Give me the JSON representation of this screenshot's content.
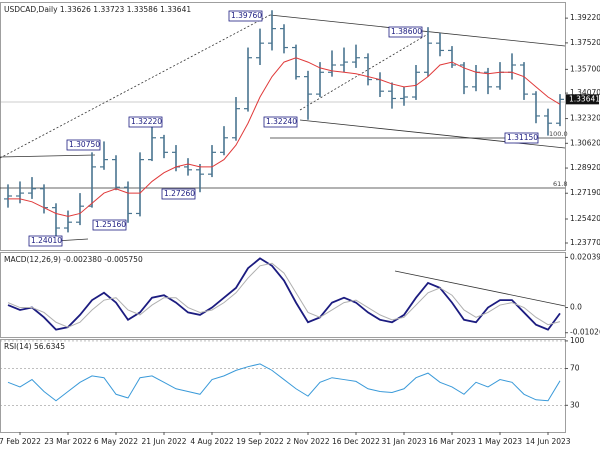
{
  "chart_data": [
    {
      "type": "ohlc",
      "title": "USDCAD,Daily 1.33626 1.33723 1.33586 1.33641",
      "color": "#4a7590",
      "open": [
        1.268,
        1.27,
        1.272,
        1.275,
        1.262,
        1.248,
        1.252,
        1.263,
        1.29,
        1.295,
        1.276,
        1.258,
        1.295,
        1.31,
        1.3,
        1.29,
        1.288,
        1.285,
        1.3,
        1.31,
        1.33,
        1.365,
        1.375,
        1.385,
        1.372,
        1.352,
        1.34,
        1.355,
        1.36,
        1.362,
        1.365,
        1.35,
        1.342,
        1.337,
        1.338,
        1.355,
        1.375,
        1.37,
        1.36,
        1.345,
        1.355,
        1.345,
        1.355,
        1.36,
        1.34,
        1.325,
        1.32
      ],
      "high": [
        1.278,
        1.28,
        1.283,
        1.278,
        1.265,
        1.26,
        1.272,
        1.3,
        1.3075,
        1.298,
        1.28,
        1.3,
        1.3222,
        1.312,
        1.305,
        1.296,
        1.292,
        1.305,
        1.318,
        1.338,
        1.372,
        1.385,
        1.3976,
        1.388,
        1.374,
        1.356,
        1.362,
        1.37,
        1.372,
        1.374,
        1.368,
        1.355,
        1.348,
        1.345,
        1.36,
        1.386,
        1.382,
        1.373,
        1.362,
        1.36,
        1.358,
        1.362,
        1.368,
        1.362,
        1.342,
        1.33,
        1.34
      ],
      "low": [
        1.262,
        1.265,
        1.268,
        1.258,
        1.2401,
        1.245,
        1.25,
        1.262,
        1.288,
        1.274,
        1.2516,
        1.256,
        1.294,
        1.296,
        1.287,
        1.284,
        1.2726,
        1.283,
        1.298,
        1.308,
        1.328,
        1.36,
        1.37,
        1.368,
        1.35,
        1.3224,
        1.338,
        1.352,
        1.355,
        1.358,
        1.346,
        1.338,
        1.33,
        1.332,
        1.336,
        1.352,
        1.366,
        1.358,
        1.34,
        1.342,
        1.34,
        1.343,
        1.35,
        1.336,
        1.32,
        1.3115,
        1.318
      ],
      "close": [
        1.27,
        1.272,
        1.275,
        1.262,
        1.248,
        1.252,
        1.263,
        1.29,
        1.295,
        1.276,
        1.258,
        1.295,
        1.31,
        1.3,
        1.29,
        1.288,
        1.285,
        1.3,
        1.31,
        1.33,
        1.365,
        1.375,
        1.385,
        1.372,
        1.352,
        1.34,
        1.355,
        1.36,
        1.362,
        1.365,
        1.35,
        1.342,
        1.337,
        1.338,
        1.355,
        1.375,
        1.37,
        1.36,
        1.345,
        1.355,
        1.345,
        1.355,
        1.36,
        1.34,
        1.325,
        1.32,
        1.33641
      ],
      "series": [
        {
          "color": "#e03a3a",
          "values": [
            1.268,
            1.268,
            1.266,
            1.262,
            1.258,
            1.256,
            1.258,
            1.265,
            1.272,
            1.275,
            1.272,
            1.272,
            1.28,
            1.286,
            1.29,
            1.292,
            1.29,
            1.29,
            1.295,
            1.305,
            1.32,
            1.338,
            1.352,
            1.362,
            1.365,
            1.362,
            1.358,
            1.356,
            1.355,
            1.354,
            1.352,
            1.35,
            1.347,
            1.345,
            1.346,
            1.352,
            1.36,
            1.362,
            1.358,
            1.355,
            1.354,
            1.355,
            1.355,
            1.352,
            1.345,
            1.338,
            1.333
          ]
        }
      ],
      "ylim": [
        1.2329,
        1.4026
      ],
      "yticks": [
        {
          "value": 1.2377,
          "label": "1.23770"
        },
        {
          "value": 1.2542,
          "label": "1.25420"
        },
        {
          "value": 1.2719,
          "label": "1.27190"
        },
        {
          "value": 1.2892,
          "label": "1.28920"
        },
        {
          "value": 1.3062,
          "label": "1.30620"
        },
        {
          "value": 1.3232,
          "label": "1.32320"
        },
        {
          "value": 1.3407,
          "label": "1.34070"
        },
        {
          "value": 1.357,
          "label": "1.35700"
        },
        {
          "value": 1.3752,
          "label": "1.37520"
        },
        {
          "value": 1.3922,
          "label": "1.39220"
        }
      ],
      "marker": {
        "value": 1.33641,
        "label": "1.33641"
      },
      "annotations": [
        "1.39760",
        "1.38600",
        "1.32220",
        "1.32240",
        "1.30750",
        "1.27260",
        "1.25160",
        "1.24010",
        "1.31150",
        "100.0",
        "61.8"
      ]
    },
    {
      "type": "line",
      "title": "MACD(12,26,9) -0.002380 -0.005750",
      "series": [
        {
          "color": "#1c1c80",
          "values": [
            0.001,
            -0.001,
            0,
            -0.004,
            -0.009,
            -0.008,
            -0.003,
            0.003,
            0.006,
            0.002,
            -0.005,
            -0.002,
            0.004,
            0.005,
            0.002,
            -0.002,
            -0.003,
            0,
            0.004,
            0.008,
            0.016,
            0.02,
            0.017,
            0.011,
            0.002,
            -0.006,
            -0.004,
            0.002,
            0.004,
            0.002,
            -0.002,
            -0.005,
            -0.006,
            -0.003,
            0.004,
            0.01,
            0.008,
            0.002,
            -0.005,
            -0.006,
            0,
            0.003,
            0.003,
            -0.002,
            -0.007,
            -0.009,
            -0.00238
          ]
        },
        {
          "color": "#b0b0b0",
          "values": [
            0.002,
            0,
            0,
            -0.002,
            -0.006,
            -0.008,
            -0.006,
            -0.001,
            0.003,
            0.004,
            -0.001,
            -0.003,
            0.001,
            0.004,
            0.004,
            0,
            -0.002,
            -0.001,
            0.002,
            0.006,
            0.012,
            0.017,
            0.018,
            0.014,
            0.006,
            -0.002,
            -0.004,
            -0.001,
            0.002,
            0.003,
            0,
            -0.003,
            -0.005,
            -0.004,
            0.001,
            0.006,
            0.008,
            0.005,
            -0.001,
            -0.004,
            -0.002,
            0.001,
            0.002,
            0,
            -0.004,
            -0.007,
            -0.00575
          ]
        }
      ],
      "ylim": [
        -0.012,
        0.0222
      ],
      "yticks": [
        0.020399,
        {
          "value": 0,
          "label": "0.0"
        },
        -0.01026
      ]
    },
    {
      "type": "line",
      "title": "RSI(14) 56.6345",
      "series": [
        {
          "color": "#3a9ad9",
          "values": [
            55,
            50,
            58,
            45,
            35,
            45,
            55,
            62,
            60,
            42,
            38,
            60,
            62,
            55,
            48,
            45,
            42,
            58,
            62,
            68,
            72,
            75,
            68,
            58,
            48,
            40,
            55,
            60,
            58,
            56,
            48,
            45,
            44,
            48,
            60,
            65,
            55,
            50,
            42,
            55,
            50,
            58,
            55,
            42,
            36,
            35,
            56.6345
          ]
        }
      ],
      "ylim": [
        1,
        101
      ],
      "yticks": [
        100,
        70,
        30
      ],
      "grid": true,
      "categories": [
        null,
        "7 Feb 2022",
        null,
        null,
        null,
        "23 Mar 2022",
        null,
        null,
        null,
        "6 May 2022",
        null,
        null,
        null,
        "21 Jun 2022",
        null,
        null,
        null,
        "4 Aug 2022",
        null,
        null,
        null,
        "19 Sep 2022",
        null,
        null,
        null,
        "2 Nov 2022",
        null,
        null,
        null,
        "16 Dec 2022",
        null,
        null,
        null,
        "31 Jan 2023",
        null,
        null,
        null,
        "16 Mar 2023",
        null,
        null,
        null,
        "1 May 2023",
        null,
        null,
        null,
        "14 Jun 2023",
        null
      ]
    }
  ]
}
